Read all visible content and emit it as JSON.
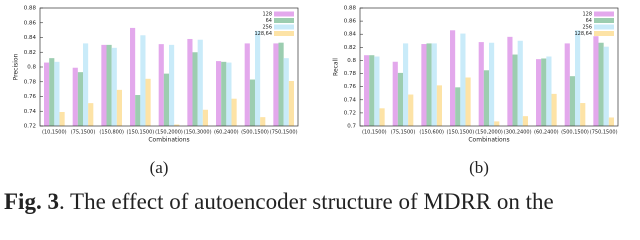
{
  "chart_data": [
    {
      "type": "bar",
      "subcaption": "(a)",
      "x_label": "Combinations",
      "y_label": "Precision",
      "categories": [
        "(10,1500)",
        "(75,1500)",
        "(150,800)",
        "(150,1500)",
        "(150,2000)",
        "(150,3000)",
        "(60,2400)",
        "(500,1500)",
        "(750,1500)"
      ],
      "series": [
        {
          "name": "128",
          "color": "#e3a8ec",
          "values": [
            0.806,
            0.799,
            0.83,
            0.853,
            0.831,
            0.838,
            0.808,
            0.832,
            0.832
          ]
        },
        {
          "name": "64",
          "color": "#9ccdb0",
          "values": [
            0.812,
            0.793,
            0.83,
            0.762,
            0.791,
            0.82,
            0.807,
            0.783,
            0.833
          ]
        },
        {
          "name": "256",
          "color": "#c9ebf9",
          "values": [
            0.807,
            0.832,
            0.826,
            0.843,
            0.83,
            0.837,
            0.806,
            0.849,
            0.812
          ]
        },
        {
          "name": "128,64",
          "color": "#fde3a6",
          "values": [
            0.739,
            0.751,
            0.769,
            0.784,
            0.722,
            0.742,
            0.757,
            0.732,
            0.781
          ]
        }
      ],
      "ylim": [
        0.72,
        0.88
      ],
      "yticks": [
        0.72,
        0.74,
        0.76,
        0.78,
        0.8,
        0.82,
        0.84,
        0.86,
        0.88
      ],
      "legend": "top-right"
    },
    {
      "type": "bar",
      "subcaption": "(b)",
      "x_label": "Combinations",
      "y_label": "Recall",
      "categories": [
        "(10,1500)",
        "(75,1500)",
        "(150,600)",
        "(150,1500)",
        "(150,2000)",
        "(300,2400)",
        "(60,2400)",
        "(500,1500)",
        "(750,1500)"
      ],
      "series": [
        {
          "name": "128",
          "color": "#e3a8ec",
          "values": [
            0.808,
            0.798,
            0.825,
            0.846,
            0.828,
            0.836,
            0.802,
            0.826,
            0.837
          ]
        },
        {
          "name": "64",
          "color": "#9ccdb0",
          "values": [
            0.808,
            0.781,
            0.826,
            0.759,
            0.785,
            0.809,
            0.803,
            0.776,
            0.827
          ]
        },
        {
          "name": "256",
          "color": "#c9ebf9",
          "values": [
            0.806,
            0.826,
            0.826,
            0.841,
            0.827,
            0.83,
            0.806,
            0.846,
            0.821
          ]
        },
        {
          "name": "128,64",
          "color": "#fde3a6",
          "values": [
            0.727,
            0.748,
            0.762,
            0.774,
            0.707,
            0.715,
            0.749,
            0.735,
            0.713
          ]
        }
      ],
      "ylim": [
        0.7,
        0.88
      ],
      "yticks": [
        0.7,
        0.72,
        0.74,
        0.76,
        0.78,
        0.8,
        0.82,
        0.84,
        0.86,
        0.88
      ],
      "legend": "top-right"
    }
  ],
  "caption": {
    "label": "Fig. 3",
    "text": ". The effect of autoencoder structure of MDRR on the"
  }
}
